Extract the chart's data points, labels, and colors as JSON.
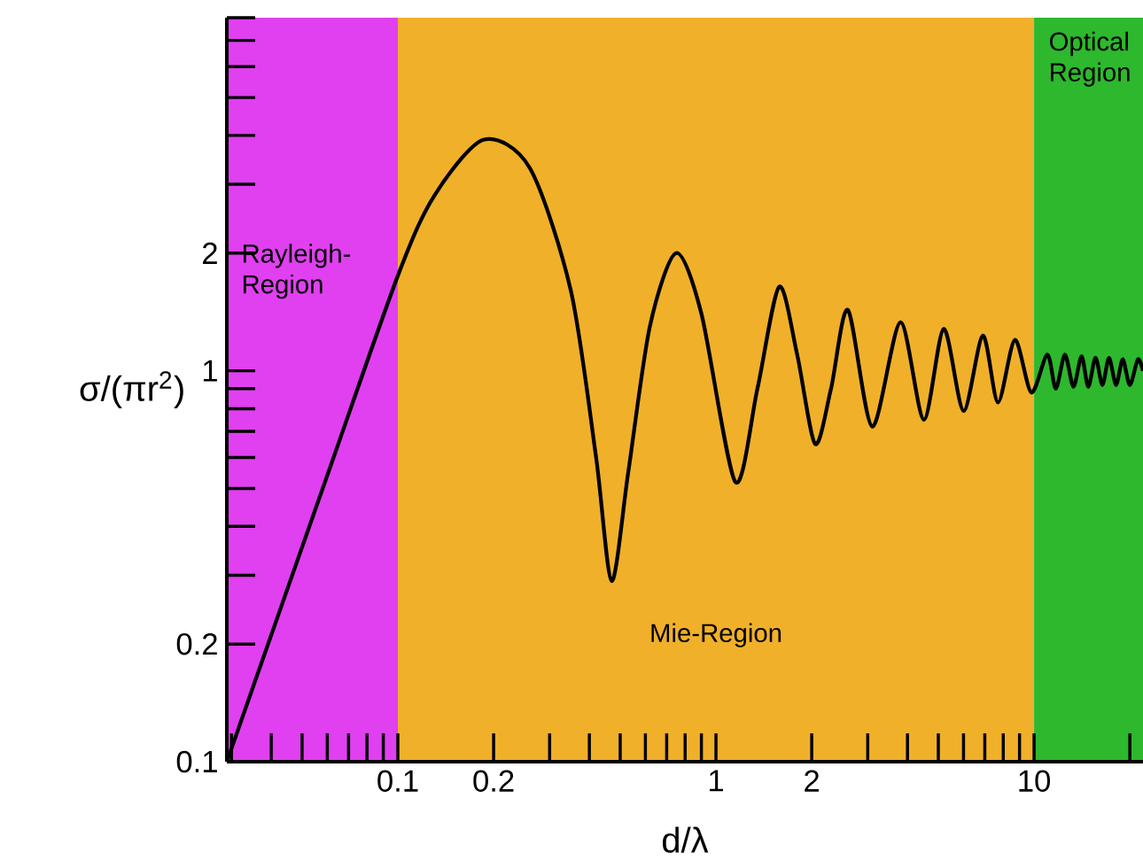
{
  "chart_data": {
    "type": "line",
    "xlabel": "d/λ",
    "ylabel": "σ/(πr$^{2}$)",
    "log": "xy",
    "xlim": [
      0.029,
      22
    ],
    "ylim": [
      0.1,
      8
    ],
    "xticks": [
      {
        "value": 0.03,
        "label": null
      },
      {
        "value": 0.04,
        "label": null
      },
      {
        "value": 0.05,
        "label": null
      },
      {
        "value": 0.06,
        "label": null
      },
      {
        "value": 0.07,
        "label": null
      },
      {
        "value": 0.08,
        "label": null
      },
      {
        "value": 0.09,
        "label": null
      },
      0.1,
      0.2,
      {
        "value": 0.3,
        "label": null
      },
      {
        "value": 0.4,
        "label": null
      },
      {
        "value": 0.5,
        "label": null
      },
      {
        "value": 0.6,
        "label": null
      },
      {
        "value": 0.7,
        "label": null
      },
      {
        "value": 0.8,
        "label": null
      },
      {
        "value": 0.9,
        "label": null
      },
      1,
      2,
      {
        "value": 3,
        "label": null
      },
      {
        "value": 4,
        "label": null
      },
      {
        "value": 5,
        "label": null
      },
      {
        "value": 6,
        "label": null
      },
      {
        "value": 7,
        "label": null
      },
      {
        "value": 8,
        "label": null
      },
      {
        "value": 9,
        "label": null
      },
      10,
      {
        "value": 20,
        "label": null
      }
    ],
    "yticks": [
      0.1,
      0.2,
      {
        "value": 0.3,
        "label": null
      },
      {
        "value": 0.4,
        "label": null
      },
      {
        "value": 0.5,
        "label": null
      },
      {
        "value": 0.6,
        "label": null
      },
      {
        "value": 0.7,
        "label": null
      },
      {
        "value": 0.8,
        "label": null
      },
      {
        "value": 0.9,
        "label": null
      },
      1,
      2,
      {
        "value": 3,
        "label": null
      },
      {
        "value": 4,
        "label": null
      },
      {
        "value": 5,
        "label": null
      },
      {
        "value": 6,
        "label": null
      },
      {
        "value": 7,
        "label": null
      },
      {
        "value": 8,
        "label": null
      }
    ],
    "bands": [
      {
        "axis": "x",
        "from": 0.029,
        "to": 0.1,
        "label": "Rayleigh-Region",
        "color": "#e040f0"
      },
      {
        "axis": "x",
        "from": 0.1,
        "to": 10,
        "label": "Mie-Region",
        "color": "#f0b02a"
      },
      {
        "axis": "x",
        "from": 10,
        "to": 22,
        "label": "Optical Region",
        "color": "#2db82d"
      }
    ],
    "series": [
      {
        "color": "#000000",
        "x": [
          0.029,
          0.06,
          0.1,
          0.13,
          0.186,
          0.26,
          0.35,
          0.42,
          0.47,
          0.53,
          0.62,
          0.75,
          0.9,
          1.15,
          1.35,
          1.58,
          1.8,
          2.05,
          2.3,
          2.6,
          3.1,
          3.8,
          4.5,
          5.2,
          6.0,
          6.9,
          7.7,
          8.7,
          9.8,
          11,
          11.7,
          12.5,
          13.3,
          14.1,
          14.8,
          15.6,
          16.4,
          17.2,
          18.1,
          19,
          20,
          21.2,
          22
        ],
        "values": [
          0.1,
          0.54,
          1.75,
          2.8,
          3.9,
          3.3,
          1.6,
          0.6,
          0.29,
          0.55,
          1.3,
          2.0,
          1.4,
          0.52,
          0.9,
          1.64,
          1.1,
          0.65,
          0.9,
          1.43,
          0.72,
          1.33,
          0.75,
          1.28,
          0.79,
          1.23,
          0.83,
          1.2,
          0.88,
          1.1,
          0.9,
          1.1,
          0.91,
          1.09,
          0.91,
          1.08,
          0.92,
          1.08,
          0.92,
          1.07,
          0.92,
          1.07,
          1.0
        ]
      }
    ]
  }
}
